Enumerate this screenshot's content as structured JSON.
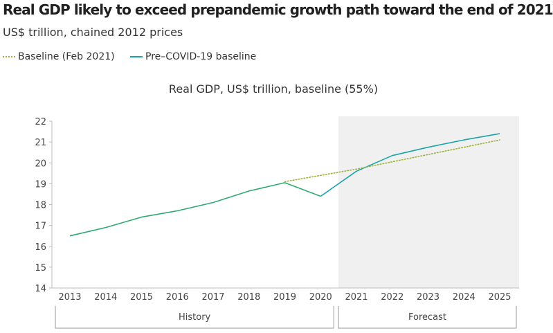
{
  "title": "Real GDP likely to exceed prepandemic growth path toward the end of 2021",
  "subtitle": "US$ trillion, chained 2012 prices",
  "legend": [
    {
      "label": "Baseline (Feb 2021)",
      "style": "dotted",
      "color": "#9bb33c"
    },
    {
      "label": "Pre–COVID-19 baseline",
      "style": "solid",
      "color": "#1aa3a8"
    }
  ],
  "chart_data": {
    "type": "line",
    "title": "Real GDP, US$ trillion, baseline (55%)",
    "categories": [
      "2013",
      "2014",
      "2015",
      "2016",
      "2017",
      "2018",
      "2019",
      "2020",
      "2021",
      "2022",
      "2023",
      "2024",
      "2025"
    ],
    "ylim": [
      14,
      22
    ],
    "yticks": [
      14,
      15,
      16,
      17,
      18,
      19,
      20,
      21,
      22
    ],
    "history_color": "#2eaa6e",
    "series": [
      {
        "name": "Baseline (Feb 2021)",
        "color": "#9bb33c",
        "style": "dotted",
        "values": [
          null,
          null,
          null,
          null,
          null,
          null,
          19.1,
          19.4,
          19.7,
          20.05,
          20.4,
          20.75,
          21.1
        ]
      },
      {
        "name": "Pre–COVID-19 baseline",
        "color": "#1aa3a8",
        "style": "solid",
        "values": [
          16.5,
          16.9,
          17.4,
          17.7,
          18.1,
          18.65,
          19.05,
          18.4,
          19.6,
          20.35,
          20.75,
          21.1,
          21.4
        ]
      }
    ],
    "groups": [
      {
        "label": "History",
        "from": "2013",
        "to": "2020"
      },
      {
        "label": "Forecast",
        "from": "2021",
        "to": "2025",
        "shaded": true
      }
    ],
    "forecast_shade_color": "#f0f0f0"
  }
}
